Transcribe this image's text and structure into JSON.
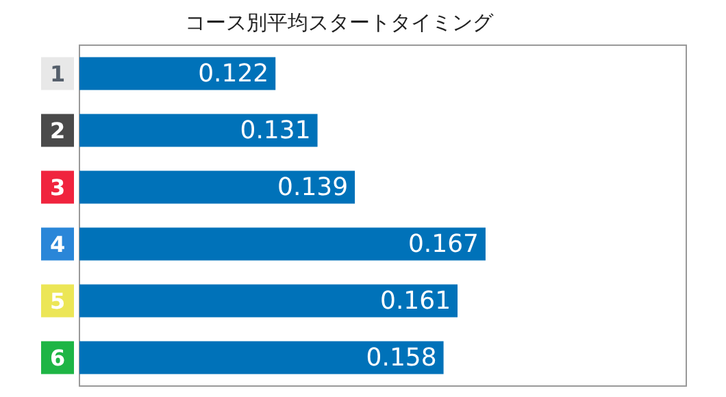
{
  "chart_data": {
    "type": "bar",
    "orientation": "horizontal",
    "title": "コース別平均スタートタイミング",
    "categories": [
      "1",
      "2",
      "3",
      "4",
      "5",
      "6"
    ],
    "values": [
      0.122,
      0.131,
      0.139,
      0.167,
      0.161,
      0.158
    ],
    "color": "#0072b9",
    "xlim": [
      0.08,
      0.21
    ],
    "tick_labels": "y",
    "data_labels": true
  }
}
